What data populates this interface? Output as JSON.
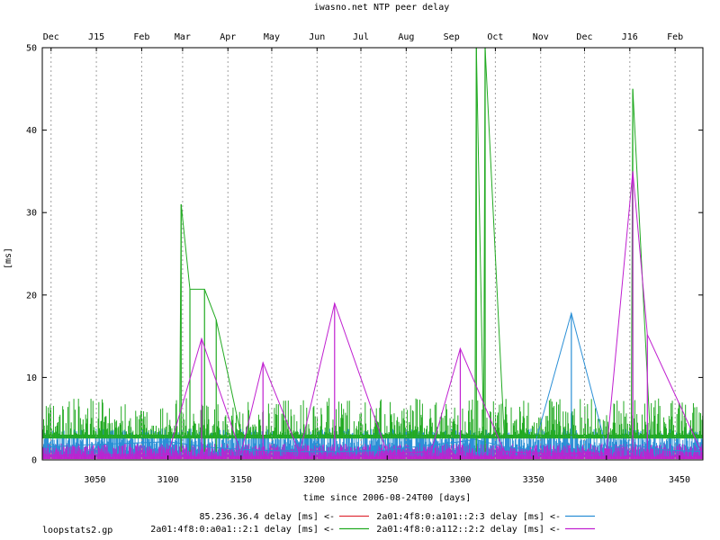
{
  "chart_data": {
    "type": "line",
    "title": "iwasno.net NTP peer delay",
    "xlabel": "time since 2006-08-24T00 [days]",
    "ylabel": "[ms]",
    "xlim": [
      3014,
      3466
    ],
    "ylim": [
      0,
      50
    ],
    "x_ticks": [
      3050,
      3100,
      3150,
      3200,
      3250,
      3300,
      3350,
      3400,
      3450
    ],
    "y_ticks": [
      0,
      10,
      20,
      30,
      40,
      50
    ],
    "month_labels": [
      {
        "x": 3020,
        "label": "Dec"
      },
      {
        "x": 3051,
        "label": "J15"
      },
      {
        "x": 3082,
        "label": "Feb"
      },
      {
        "x": 3110,
        "label": "Mar"
      },
      {
        "x": 3141,
        "label": "Apr"
      },
      {
        "x": 3171,
        "label": "May"
      },
      {
        "x": 3202,
        "label": "Jun"
      },
      {
        "x": 3232,
        "label": "Jul"
      },
      {
        "x": 3263,
        "label": "Aug"
      },
      {
        "x": 3294,
        "label": "Sep"
      },
      {
        "x": 3324,
        "label": "Oct"
      },
      {
        "x": 3355,
        "label": "Nov"
      },
      {
        "x": 3385,
        "label": "Dec"
      },
      {
        "x": 3416,
        "label": "J16"
      },
      {
        "x": 3447,
        "label": "Feb"
      }
    ],
    "grid": {
      "x": true,
      "y": false,
      "style": "dashed-vertical-at-month-boundaries"
    },
    "legend_position": "bottom-center",
    "series": [
      {
        "name": "85.236.36.4 delay [ms] <-",
        "color": "#e0303a",
        "x": [],
        "y": []
      },
      {
        "name": "2a01:4f8:0:a101::2:3 delay [ms] <-",
        "color": "#2a8fd6",
        "x": [
          3014,
          3040,
          3070,
          3100,
          3130,
          3160,
          3190,
          3220,
          3250,
          3280,
          3300,
          3310,
          3330,
          3350,
          3376,
          3400,
          3418,
          3440,
          3466
        ],
        "y": [
          1.5,
          1.8,
          2.0,
          2.2,
          1.5,
          1.2,
          1.0,
          1.0,
          1.2,
          1.8,
          2.2,
          2.5,
          1.6,
          1.2,
          17.8,
          1.4,
          1.8,
          1.2,
          1.0
        ]
      },
      {
        "name": "2a01:4f8:0:a0a1::2:1 delay [ms] <-",
        "color": "#22aa22",
        "x": [
          3014,
          3030,
          3050,
          3080,
          3108,
          3109,
          3115,
          3125,
          3133,
          3150,
          3180,
          3200,
          3240,
          3280,
          3310,
          3311,
          3316,
          3317,
          3330,
          3360,
          3390,
          3417,
          3418,
          3430,
          3466
        ],
        "y": [
          3.0,
          3.0,
          3.0,
          3.0,
          3.0,
          31.0,
          20.7,
          20.7,
          17.0,
          3.0,
          3.0,
          3.0,
          3.0,
          3.0,
          3.0,
          50.0,
          3.0,
          50.0,
          3.0,
          3.0,
          3.0,
          3.0,
          45.0,
          3.0,
          3.0
        ]
      },
      {
        "name": "2a01:4f8:0:a112::2:2 delay [ms] <-",
        "color": "#c020d0",
        "x": [
          3014,
          3050,
          3100,
          3123,
          3150,
          3165,
          3190,
          3214,
          3250,
          3280,
          3300,
          3330,
          3360,
          3400,
          3418,
          3428,
          3466
        ],
        "y": [
          0.6,
          0.6,
          0.7,
          14.7,
          0.8,
          11.8,
          0.8,
          19.0,
          0.8,
          1.0,
          13.5,
          1.0,
          0.8,
          0.8,
          35.0,
          15.2,
          0.6
        ]
      }
    ]
  },
  "footer": "loopstats2.gp"
}
